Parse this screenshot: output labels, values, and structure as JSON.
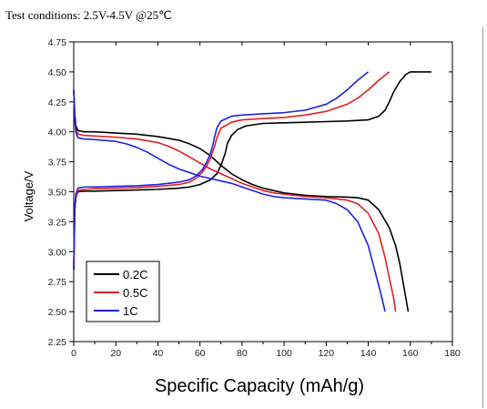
{
  "caption": "Test conditions: 2.5V-4.5V @25℃",
  "chart_data": {
    "type": "line",
    "title": "",
    "xlabel": "Specific Capacity  (mAh/g)",
    "ylabel": "Voltage/V",
    "xlim": [
      0,
      180
    ],
    "ylim": [
      2.25,
      4.75
    ],
    "xticks": [
      "0",
      "20",
      "40",
      "60",
      "80",
      "100",
      "120",
      "140",
      "160",
      "180"
    ],
    "yticks": [
      "2.25",
      "2.50",
      "2.75",
      "3.00",
      "3.25",
      "3.50",
      "3.75",
      "4.00",
      "4.25",
      "4.50",
      "4.75"
    ],
    "grid": false,
    "legend_position": "bottom-left",
    "series": [
      {
        "name": "0.2C",
        "color": "#000000",
        "charge": {
          "x": [
            0,
            0.5,
            1,
            2,
            5,
            10,
            20,
            30,
            40,
            50,
            55,
            60,
            65,
            68,
            70,
            72,
            73,
            75,
            78,
            82,
            90,
            100,
            110,
            120,
            130,
            135,
            140,
            145,
            148,
            150,
            152,
            155,
            158,
            160,
            170
          ],
          "y": [
            2.85,
            3.35,
            3.45,
            3.5,
            3.505,
            3.505,
            3.51,
            3.515,
            3.52,
            3.53,
            3.54,
            3.56,
            3.6,
            3.65,
            3.72,
            3.82,
            3.9,
            3.97,
            4.02,
            4.05,
            4.07,
            4.075,
            4.08,
            4.085,
            4.09,
            4.095,
            4.1,
            4.13,
            4.18,
            4.25,
            4.33,
            4.42,
            4.48,
            4.5,
            4.5
          ]
        },
        "discharge": {
          "x": [
            0,
            0.5,
            1,
            2,
            5,
            10,
            20,
            30,
            40,
            50,
            55,
            60,
            65,
            70,
            75,
            80,
            85,
            90,
            95,
            100,
            110,
            120,
            130,
            135,
            140,
            145,
            150,
            153,
            155,
            157,
            158,
            159
          ],
          "y": [
            4.35,
            4.15,
            4.05,
            4.01,
            4.0,
            4.0,
            3.99,
            3.98,
            3.96,
            3.93,
            3.9,
            3.86,
            3.8,
            3.72,
            3.65,
            3.6,
            3.56,
            3.53,
            3.51,
            3.49,
            3.47,
            3.46,
            3.455,
            3.45,
            3.43,
            3.35,
            3.2,
            3.05,
            2.9,
            2.7,
            2.6,
            2.5
          ]
        }
      },
      {
        "name": "0.5C",
        "color": "#e02020",
        "charge": {
          "x": [
            0,
            0.5,
            1,
            2,
            5,
            10,
            20,
            30,
            40,
            50,
            55,
            58,
            61,
            63,
            65,
            67,
            68,
            70,
            75,
            80,
            90,
            100,
            110,
            120,
            130,
            135,
            140,
            145,
            150
          ],
          "y": [
            2.85,
            3.35,
            3.45,
            3.51,
            3.52,
            3.525,
            3.53,
            3.535,
            3.545,
            3.56,
            3.58,
            3.61,
            3.66,
            3.71,
            3.78,
            3.88,
            3.95,
            4.03,
            4.08,
            4.1,
            4.11,
            4.12,
            4.14,
            4.17,
            4.23,
            4.28,
            4.35,
            4.43,
            4.5
          ]
        },
        "discharge": {
          "x": [
            0,
            0.5,
            1,
            2,
            5,
            10,
            20,
            30,
            40,
            45,
            50,
            55,
            60,
            65,
            70,
            75,
            80,
            85,
            90,
            95,
            100,
            110,
            120,
            130,
            135,
            140,
            145,
            148,
            150,
            152,
            153
          ],
          "y": [
            4.35,
            4.12,
            4.02,
            3.98,
            3.97,
            3.965,
            3.955,
            3.94,
            3.91,
            3.88,
            3.84,
            3.79,
            3.74,
            3.69,
            3.65,
            3.61,
            3.57,
            3.54,
            3.51,
            3.49,
            3.48,
            3.46,
            3.45,
            3.43,
            3.4,
            3.32,
            3.15,
            2.95,
            2.78,
            2.62,
            2.5
          ]
        }
      },
      {
        "name": "1C",
        "color": "#2020e0",
        "charge": {
          "x": [
            0,
            0.5,
            1,
            2,
            5,
            10,
            20,
            30,
            40,
            50,
            55,
            58,
            61,
            63,
            65,
            66,
            67,
            68,
            70,
            75,
            80,
            90,
            100,
            110,
            120,
            125,
            130,
            135,
            140
          ],
          "y": [
            2.85,
            3.38,
            3.48,
            3.53,
            3.54,
            3.54,
            3.545,
            3.55,
            3.56,
            3.58,
            3.6,
            3.63,
            3.68,
            3.74,
            3.82,
            3.88,
            3.96,
            4.03,
            4.09,
            4.13,
            4.14,
            4.15,
            4.16,
            4.18,
            4.23,
            4.28,
            4.35,
            4.43,
            4.5
          ]
        },
        "discharge": {
          "x": [
            0,
            0.5,
            1,
            2,
            5,
            10,
            20,
            25,
            30,
            35,
            40,
            45,
            50,
            55,
            60,
            65,
            70,
            75,
            80,
            85,
            90,
            95,
            100,
            110,
            120,
            125,
            130,
            135,
            140,
            143,
            146,
            148
          ],
          "y": [
            4.35,
            4.1,
            4.0,
            3.95,
            3.94,
            3.935,
            3.92,
            3.9,
            3.87,
            3.83,
            3.78,
            3.73,
            3.69,
            3.66,
            3.63,
            3.61,
            3.59,
            3.57,
            3.54,
            3.51,
            3.48,
            3.46,
            3.45,
            3.44,
            3.43,
            3.4,
            3.35,
            3.25,
            3.05,
            2.85,
            2.65,
            2.5
          ]
        }
      }
    ]
  }
}
